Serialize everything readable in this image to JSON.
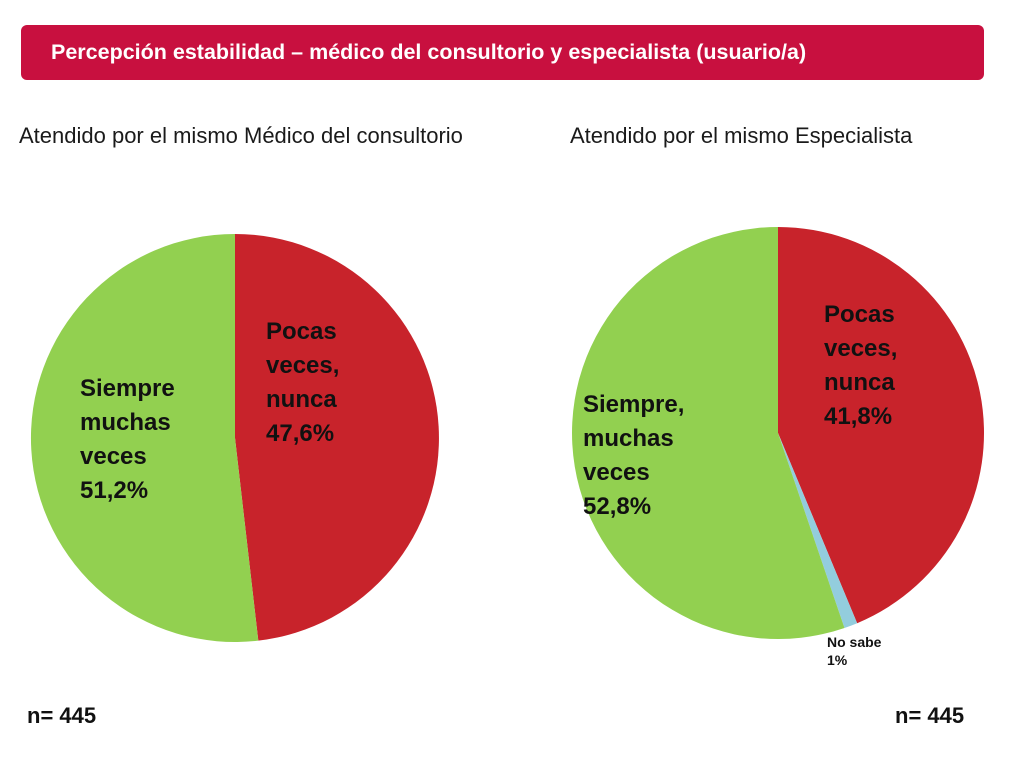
{
  "header": {
    "title": "Percepción estabilidad – médico del consultorio y especialista (usuario/a)",
    "color": "#c8103f"
  },
  "chart_data": [
    {
      "type": "pie",
      "title": "Atendido por el mismo Médico del consultorio",
      "n": "n= 445",
      "slices": [
        {
          "label": [
            "Pocas",
            "veces,",
            "nunca",
            "47,6%"
          ],
          "value": 47.6,
          "color": "#c8232b"
        },
        {
          "label": [
            "Siempre",
            "muchas",
            "veces",
            "51,2%"
          ],
          "value": 51.2,
          "color": "#92d050"
        }
      ]
    },
    {
      "type": "pie",
      "title": "Atendido por el mismo Especialista",
      "n": "n= 445",
      "slices": [
        {
          "label": [
            "Pocas",
            "veces,",
            "nunca",
            "41,8%"
          ],
          "value": 41.8,
          "color": "#c8232b"
        },
        {
          "label": [
            "No sabe",
            "1%"
          ],
          "value": 1,
          "color": "#93cddd"
        },
        {
          "label": [
            "Siempre,",
            "muchas",
            "veces",
            "52,8%"
          ],
          "value": 52.8,
          "color": "#92d050"
        }
      ]
    }
  ]
}
